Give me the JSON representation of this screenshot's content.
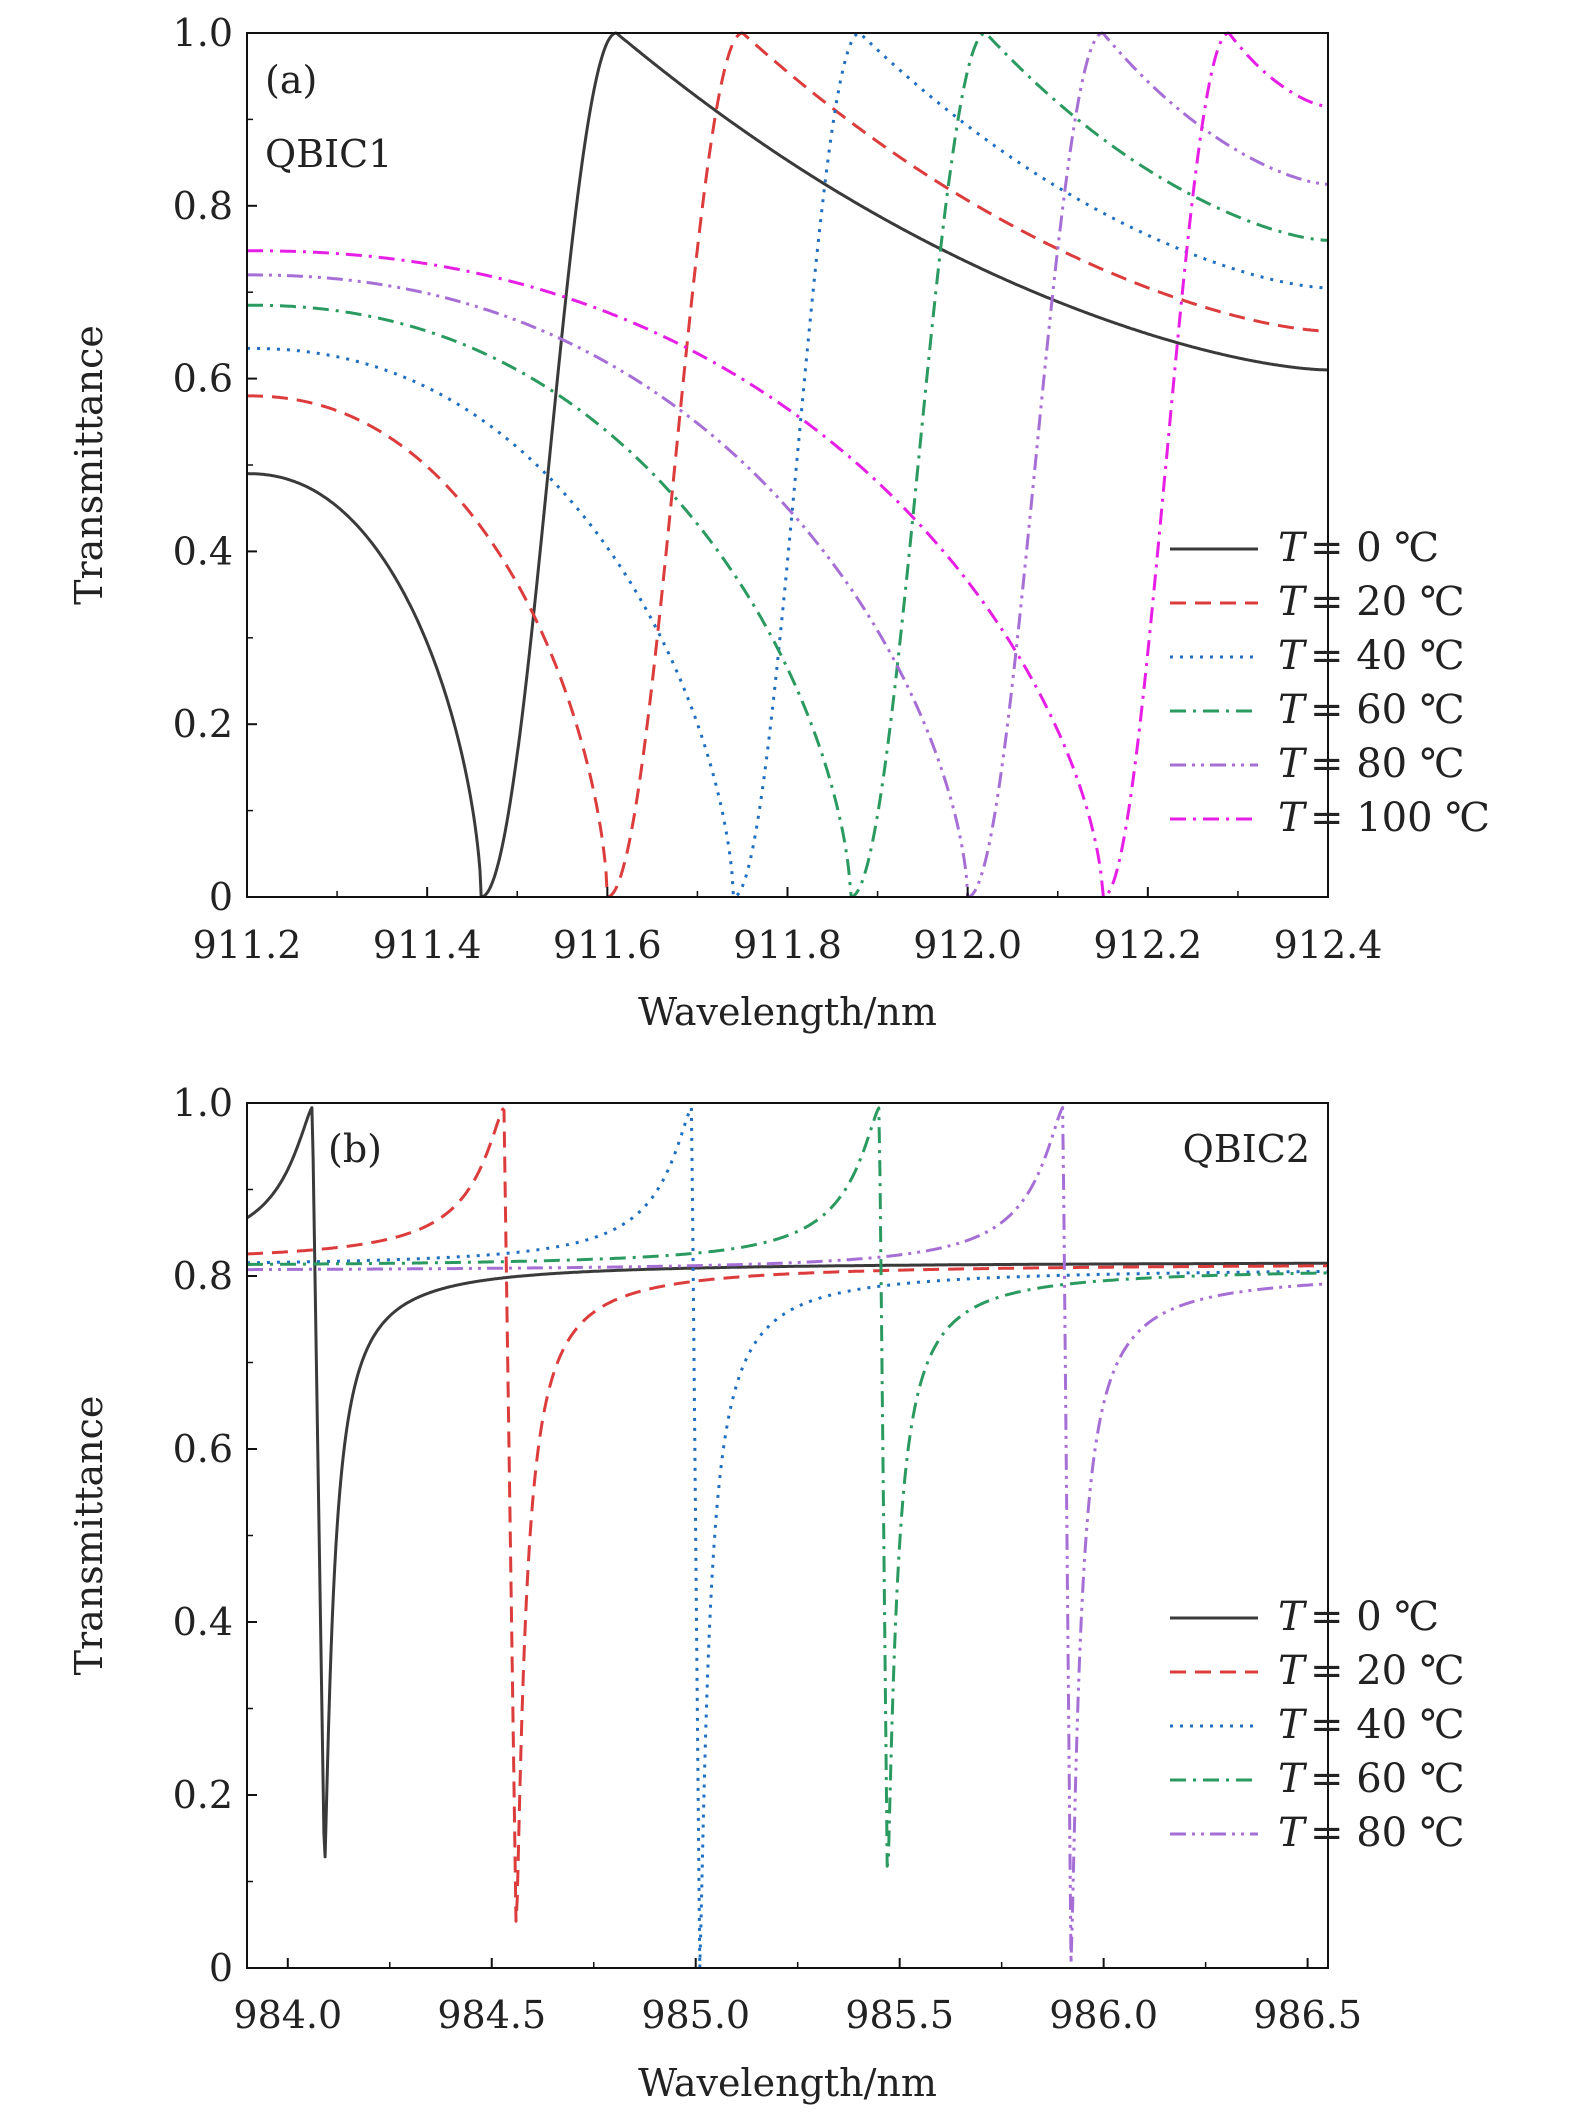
{
  "chart_data": [
    {
      "type": "line",
      "panel_label": "(a)",
      "annotation": "QBIC1",
      "xlabel": "Wavelength/nm",
      "ylabel": "Transmittance",
      "xlim": [
        911.2,
        912.4
      ],
      "ylim": [
        0,
        1.0
      ],
      "xticks": [
        "911.2",
        "911.4",
        "911.6",
        "911.8",
        "912.0",
        "912.2",
        "912.4"
      ],
      "yticks": [
        "0",
        "0.2",
        "0.4",
        "0.6",
        "0.8",
        "1.0"
      ],
      "legend_position": "right",
      "series": [
        {
          "name": "T = 0 ℃",
          "symbol": "T",
          "label": "= 0 ℃",
          "color": "#3a3a3a",
          "dash": "solid",
          "min_x": 911.46,
          "peak_x": 911.61,
          "x_start": 911.2,
          "y_start": 0.49,
          "x_end": 912.4,
          "y_end": 0.61
        },
        {
          "name": "T = 20 ℃",
          "symbol": "T",
          "label": "= 20 ℃",
          "color": "#dc3c3c",
          "dash": "dash",
          "min_x": 911.6,
          "peak_x": 911.75,
          "x_start": 911.2,
          "y_start": 0.58,
          "x_end": 912.4,
          "y_end": 0.655
        },
        {
          "name": "T = 40 ℃",
          "symbol": "T",
          "label": "= 40 ℃",
          "color": "#1f6fc0",
          "dash": "dot",
          "min_x": 911.74,
          "peak_x": 911.88,
          "x_start": 911.2,
          "y_start": 0.635,
          "x_end": 912.4,
          "y_end": 0.705
        },
        {
          "name": "T = 60 ℃",
          "symbol": "T",
          "label": "= 60 ℃",
          "color": "#2a9a60",
          "dash": "dashdot",
          "min_x": 911.87,
          "peak_x": 912.02,
          "x_start": 911.2,
          "y_start": 0.685,
          "x_end": 912.4,
          "y_end": 0.76
        },
        {
          "name": "T = 80 ℃",
          "symbol": "T",
          "label": "= 80 ℃",
          "color": "#a66fd6",
          "dash": "dashdotdot",
          "min_x": 912.0,
          "peak_x": 912.15,
          "x_start": 911.2,
          "y_start": 0.72,
          "x_end": 912.4,
          "y_end": 0.825
        },
        {
          "name": "T = 100 ℃",
          "symbol": "T",
          "label": "= 100 ℃",
          "color": "#e61ee6",
          "dash": "dashdot",
          "min_x": 912.15,
          "peak_x": 912.29,
          "x_start": 911.2,
          "y_start": 0.748,
          "x_end": 912.4,
          "y_end": 0.915
        }
      ]
    },
    {
      "type": "line",
      "panel_label": "(b)",
      "annotation": "QBIC2",
      "xlabel": "Wavelength/nm",
      "ylabel": "Transmittance",
      "xlim": [
        983.9,
        986.55
      ],
      "ylim": [
        0,
        1.0
      ],
      "xticks": [
        "984.0",
        "984.5",
        "985.0",
        "985.5",
        "986.0",
        "986.5"
      ],
      "yticks": [
        "0",
        "0.2",
        "0.4",
        "0.6",
        "0.8",
        "1.0"
      ],
      "legend_position": "right",
      "series": [
        {
          "name": "T = 0 ℃",
          "symbol": "T",
          "label": "= 0 ℃",
          "color": "#3a3a3a",
          "dash": "solid",
          "peak_x": 984.06,
          "min_x": 984.09,
          "min_y": 0.11,
          "baseline": 0.817
        },
        {
          "name": "T = 20 ℃",
          "symbol": "T",
          "label": "= 20 ℃",
          "color": "#dc3c3c",
          "dash": "dash",
          "peak_x": 984.53,
          "min_x": 984.56,
          "min_y": 0.04,
          "baseline": 0.815
        },
        {
          "name": "T = 40 ℃",
          "symbol": "T",
          "label": "= 40 ℃",
          "color": "#1f6fc0",
          "dash": "dot",
          "peak_x": 984.99,
          "min_x": 985.01,
          "min_y": 0.0,
          "baseline": 0.81
        },
        {
          "name": "T = 60 ℃",
          "symbol": "T",
          "label": "= 60 ℃",
          "color": "#2a9a60",
          "dash": "dashdot",
          "peak_x": 985.45,
          "min_x": 985.47,
          "min_y": 0.09,
          "baseline": 0.81
        },
        {
          "name": "T = 80 ℃",
          "symbol": "T",
          "label": "= 80 ℃",
          "color": "#a66fd6",
          "dash": "dashdotdot",
          "peak_x": 985.9,
          "min_x": 985.92,
          "min_y": 0.0,
          "baseline": 0.805
        }
      ]
    }
  ]
}
